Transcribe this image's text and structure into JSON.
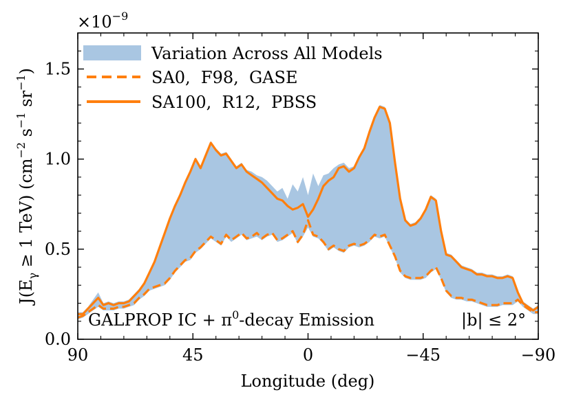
{
  "chart_data": {
    "type": "area",
    "xlabel": "Longitude (deg)",
    "ylabel": "J(E_γ ≥ 1 TeV) (cm⁻² s⁻¹ sr⁻¹)",
    "ylabel_main": "J(E",
    "ylabel_sub": "γ",
    "ylabel_rest": " ≥ 1 TeV) (cm",
    "ylabel_sup1": "−2",
    "ylabel_s": " s",
    "ylabel_sup2": "−1",
    "ylabel_sr": " sr",
    "ylabel_sup3": "−1",
    "ylabel_close": ")",
    "multiplier_base": "×10",
    "multiplier_exp": "−9",
    "xlim": [
      90,
      -90
    ],
    "ylim": [
      0.0,
      1.7
    ],
    "xticks": [
      90,
      45,
      0,
      -45,
      -90
    ],
    "xtick_labels": [
      "90",
      "45",
      "0",
      "−45",
      "−90"
    ],
    "yticks": [
      0.0,
      0.5,
      1.0,
      1.5
    ],
    "ytick_labels": [
      "0.0",
      "0.5",
      "1.0",
      "1.5"
    ],
    "annotation_left": "GALPROP IC + π⁰-decay Emission",
    "annotation_left_pre": "GALPROP IC + π",
    "annotation_left_sup": "0",
    "annotation_left_post": "-decay Emission",
    "annotation_right": "|b| ≤ 2°",
    "legend_position": "top-left",
    "colors": {
      "band": "#a9c6e2",
      "line": "#ff7f0e"
    },
    "legend": [
      {
        "label": "Variation Across All Models",
        "style": "band"
      },
      {
        "label": "SA0,  F98,  GASE",
        "style": "dashed"
      },
      {
        "label": "SA100,  R12,  PBSS",
        "style": "solid"
      }
    ],
    "x": [
      90,
      88,
      86,
      84,
      82,
      80,
      78,
      76,
      74,
      72,
      70,
      68,
      66,
      64,
      62,
      60,
      58,
      56,
      54,
      52,
      50,
      48,
      46,
      44,
      42,
      40,
      38,
      36,
      34,
      32,
      30,
      28,
      26,
      24,
      22,
      20,
      18,
      16,
      14,
      12,
      10,
      8,
      6,
      4,
      2,
      0,
      -2,
      -4,
      -6,
      -8,
      -10,
      -12,
      -14,
      -16,
      -18,
      -20,
      -22,
      -24,
      -26,
      -28,
      -30,
      -32,
      -34,
      -36,
      -38,
      -40,
      -42,
      -44,
      -46,
      -48,
      -50,
      -52,
      -54,
      -56,
      -58,
      -60,
      -62,
      -64,
      -66,
      -68,
      -70,
      -72,
      -74,
      -76,
      -78,
      -80,
      -82,
      -84,
      -86,
      -88,
      -90
    ],
    "series": [
      {
        "name": "SA100,  R12,  PBSS",
        "style": "solid",
        "values": [
          0.14,
          0.14,
          0.17,
          0.2,
          0.23,
          0.19,
          0.2,
          0.19,
          0.2,
          0.2,
          0.21,
          0.24,
          0.27,
          0.31,
          0.37,
          0.43,
          0.51,
          0.59,
          0.67,
          0.74,
          0.8,
          0.87,
          0.93,
          1.0,
          0.95,
          1.02,
          1.09,
          1.05,
          1.02,
          1.03,
          0.99,
          0.95,
          0.97,
          0.93,
          0.91,
          0.89,
          0.87,
          0.84,
          0.81,
          0.78,
          0.77,
          0.74,
          0.72,
          0.73,
          0.75,
          0.68,
          0.72,
          0.78,
          0.85,
          0.88,
          0.9,
          0.95,
          0.96,
          0.93,
          0.95,
          1.01,
          1.06,
          1.15,
          1.23,
          1.29,
          1.28,
          1.2,
          0.98,
          0.78,
          0.66,
          0.63,
          0.64,
          0.67,
          0.72,
          0.79,
          0.77,
          0.6,
          0.47,
          0.46,
          0.43,
          0.4,
          0.39,
          0.38,
          0.36,
          0.36,
          0.35,
          0.35,
          0.34,
          0.34,
          0.35,
          0.34,
          0.26,
          0.2,
          0.18,
          0.16,
          0.18
        ]
      },
      {
        "name": "SA0,  F98,  GASE",
        "style": "dashed",
        "values": [
          0.12,
          0.13,
          0.15,
          0.17,
          0.19,
          0.17,
          0.17,
          0.17,
          0.18,
          0.18,
          0.19,
          0.2,
          0.23,
          0.25,
          0.28,
          0.29,
          0.3,
          0.31,
          0.34,
          0.38,
          0.41,
          0.44,
          0.45,
          0.49,
          0.51,
          0.54,
          0.57,
          0.55,
          0.53,
          0.58,
          0.55,
          0.57,
          0.59,
          0.56,
          0.57,
          0.59,
          0.56,
          0.58,
          0.59,
          0.55,
          0.56,
          0.58,
          0.6,
          0.54,
          0.58,
          0.66,
          0.58,
          0.57,
          0.54,
          0.5,
          0.52,
          0.5,
          0.49,
          0.52,
          0.53,
          0.52,
          0.53,
          0.55,
          0.58,
          0.57,
          0.58,
          0.52,
          0.46,
          0.38,
          0.35,
          0.34,
          0.34,
          0.34,
          0.35,
          0.38,
          0.4,
          0.34,
          0.27,
          0.24,
          0.23,
          0.23,
          0.22,
          0.22,
          0.21,
          0.2,
          0.19,
          0.19,
          0.19,
          0.2,
          0.2,
          0.2,
          0.22,
          0.19,
          0.17,
          0.15,
          0.15
        ]
      }
    ],
    "band_lower": [
      0.11,
      0.12,
      0.14,
      0.16,
      0.18,
      0.16,
      0.16,
      0.16,
      0.17,
      0.17,
      0.18,
      0.19,
      0.22,
      0.24,
      0.27,
      0.28,
      0.29,
      0.3,
      0.33,
      0.37,
      0.4,
      0.43,
      0.44,
      0.48,
      0.5,
      0.53,
      0.56,
      0.54,
      0.52,
      0.57,
      0.54,
      0.56,
      0.58,
      0.55,
      0.56,
      0.57,
      0.55,
      0.57,
      0.58,
      0.54,
      0.55,
      0.57,
      0.59,
      0.53,
      0.57,
      0.62,
      0.57,
      0.56,
      0.53,
      0.49,
      0.51,
      0.49,
      0.48,
      0.51,
      0.52,
      0.51,
      0.52,
      0.54,
      0.57,
      0.56,
      0.57,
      0.51,
      0.45,
      0.37,
      0.34,
      0.33,
      0.33,
      0.33,
      0.34,
      0.37,
      0.39,
      0.33,
      0.26,
      0.23,
      0.22,
      0.22,
      0.21,
      0.21,
      0.2,
      0.19,
      0.18,
      0.18,
      0.18,
      0.19,
      0.19,
      0.19,
      0.21,
      0.18,
      0.16,
      0.14,
      0.14
    ],
    "band_upper": [
      0.15,
      0.15,
      0.18,
      0.22,
      0.26,
      0.2,
      0.21,
      0.2,
      0.21,
      0.21,
      0.22,
      0.25,
      0.28,
      0.32,
      0.38,
      0.44,
      0.52,
      0.6,
      0.68,
      0.75,
      0.81,
      0.88,
      0.94,
      1.01,
      0.96,
      1.03,
      1.1,
      1.06,
      1.03,
      1.04,
      1.0,
      0.96,
      0.98,
      0.94,
      0.93,
      0.91,
      0.9,
      0.88,
      0.85,
      0.82,
      0.84,
      0.78,
      0.86,
      0.82,
      0.9,
      0.8,
      0.92,
      0.85,
      0.91,
      0.92,
      0.95,
      0.97,
      0.98,
      0.95,
      0.96,
      1.02,
      1.07,
      1.16,
      1.24,
      1.3,
      1.29,
      1.21,
      0.99,
      0.79,
      0.67,
      0.64,
      0.65,
      0.68,
      0.73,
      0.8,
      0.78,
      0.61,
      0.48,
      0.47,
      0.44,
      0.41,
      0.4,
      0.39,
      0.37,
      0.37,
      0.36,
      0.36,
      0.35,
      0.35,
      0.36,
      0.35,
      0.27,
      0.21,
      0.19,
      0.17,
      0.19
    ]
  }
}
